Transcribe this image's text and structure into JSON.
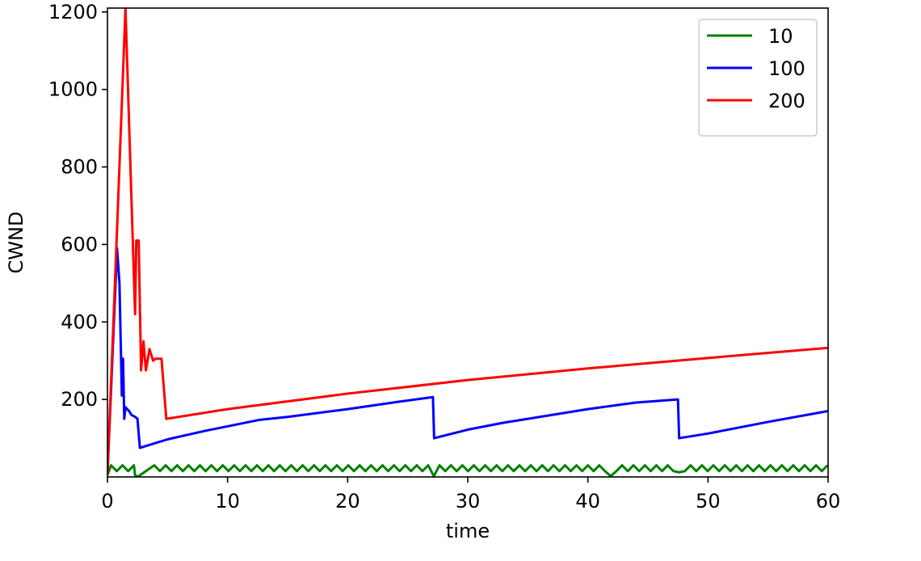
{
  "chart_data": {
    "type": "line",
    "title": "",
    "xlabel": "time",
    "ylabel": "CWND",
    "xlim": [
      0,
      60
    ],
    "ylim": [
      0,
      1210
    ],
    "xticks": [
      0,
      10,
      20,
      30,
      40,
      50,
      60
    ],
    "yticks": [
      200,
      400,
      600,
      800,
      1000,
      1200
    ],
    "grid": false,
    "legend_position": "top-right",
    "series": [
      {
        "name": "10",
        "color": "#008000",
        "points": [
          [
            0,
            5
          ],
          [
            2.3,
            5
          ],
          [
            2.5,
            0
          ],
          [
            3.9,
            30
          ],
          [
            60,
            30
          ]
        ],
        "sawtooth": {
          "low": 15,
          "high": 30,
          "start": 0,
          "end": 60,
          "period": 0.95
        }
      },
      {
        "name": "100",
        "color": "#0000ff",
        "points": [
          [
            0,
            5
          ],
          [
            0.8,
            590
          ],
          [
            1.0,
            500
          ],
          [
            1.2,
            210
          ],
          [
            1.3,
            305
          ],
          [
            1.4,
            150
          ],
          [
            1.5,
            180
          ],
          [
            1.8,
            170
          ],
          [
            2.0,
            160
          ],
          [
            2.3,
            155
          ],
          [
            2.5,
            150
          ],
          [
            2.7,
            75
          ],
          [
            5,
            97
          ],
          [
            8,
            118
          ],
          [
            12.6,
            147
          ],
          [
            15,
            155
          ],
          [
            20,
            175
          ],
          [
            24,
            193
          ],
          [
            27.1,
            206
          ],
          [
            27.2,
            100
          ],
          [
            30,
            122
          ],
          [
            33,
            140
          ],
          [
            35,
            150
          ],
          [
            40,
            175
          ],
          [
            44,
            192
          ],
          [
            47.5,
            200
          ],
          [
            47.6,
            100
          ],
          [
            50,
            112
          ],
          [
            55,
            142
          ],
          [
            60,
            170
          ]
        ]
      },
      {
        "name": "200",
        "color": "#ff0000",
        "points": [
          [
            0,
            5
          ],
          [
            0.8,
            640
          ],
          [
            1.5,
            1210
          ],
          [
            2.3,
            420
          ],
          [
            2.4,
            610
          ],
          [
            2.6,
            610
          ],
          [
            2.8,
            275
          ],
          [
            3.0,
            350
          ],
          [
            3.2,
            275
          ],
          [
            3.5,
            330
          ],
          [
            3.8,
            300
          ],
          [
            4.0,
            305
          ],
          [
            4.5,
            305
          ],
          [
            4.9,
            150
          ],
          [
            10,
            175
          ],
          [
            20,
            215
          ],
          [
            30,
            250
          ],
          [
            40,
            280
          ],
          [
            50,
            307
          ],
          [
            60,
            333
          ]
        ]
      }
    ]
  }
}
